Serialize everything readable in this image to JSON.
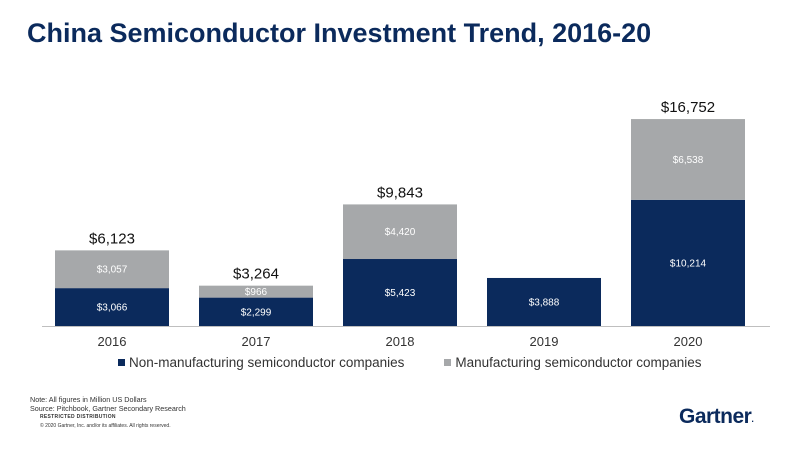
{
  "title": "China Semiconductor Investment Trend, 2016-20",
  "colors": {
    "non_manufacturing": "#0b2a5c",
    "manufacturing": "#a6a8aa",
    "title": "#0b2a5c"
  },
  "chart_data": {
    "type": "bar",
    "stacked": true,
    "categories": [
      "2016",
      "2017",
      "2018",
      "2019",
      "2020"
    ],
    "series": [
      {
        "name": "Non-manufacturing semiconductor companies",
        "values": [
          3066,
          2299,
          5423,
          3888,
          10214
        ],
        "labels": [
          "$3,066",
          "$2,299",
          "$5,423",
          "$3,888",
          "$10,214"
        ]
      },
      {
        "name": "Manufacturing semiconductor companies",
        "values": [
          3057,
          966,
          4420,
          0,
          6538
        ],
        "labels": [
          "$3,057",
          "$966",
          "$4,420",
          "",
          "$6,538"
        ]
      }
    ],
    "totals": [
      6123,
      3264,
      9843,
      3888,
      16752
    ],
    "total_labels": [
      "$6,123",
      "$3,264",
      "$9,843",
      "",
      "$16,752"
    ],
    "ylim": [
      0,
      17000
    ],
    "grid": false,
    "legend_position": "bottom"
  },
  "notes": {
    "line1": "Note: All figures in Million US Dollars",
    "line2": "Source: Pitchbook, Gartner Secondary Research",
    "restricted": "RESTRICTED DISTRIBUTION",
    "copyright": "© 2020 Gartner, Inc. and/or its affiliates. All rights reserved."
  },
  "logo": {
    "text": "Gartner",
    "mark": "."
  }
}
